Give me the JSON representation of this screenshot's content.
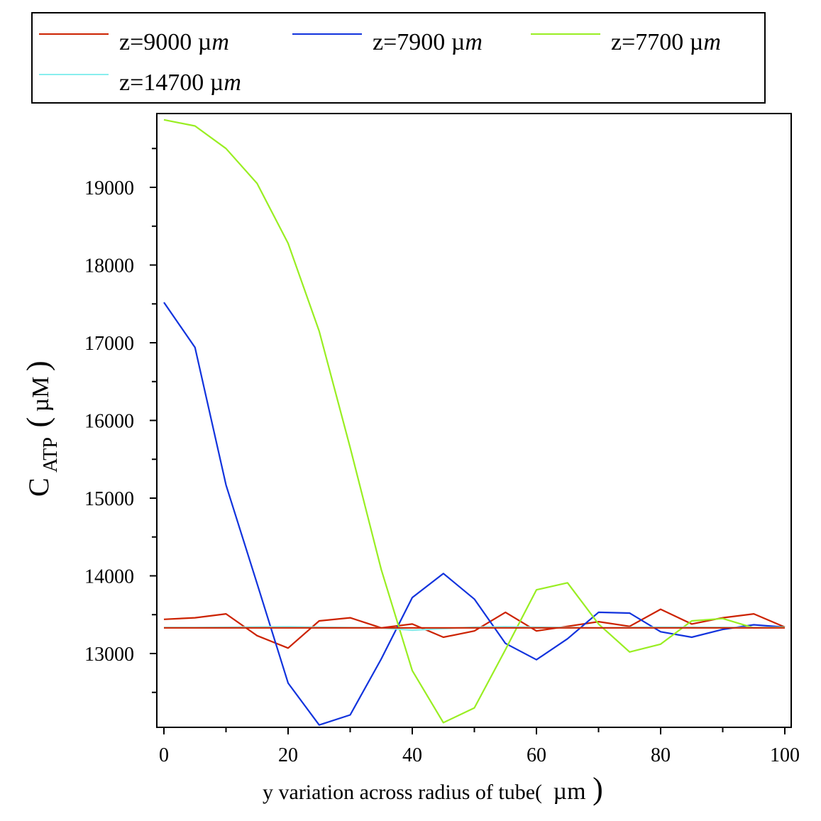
{
  "chart_data": {
    "type": "line",
    "title": "",
    "xlabel_text": "y variation across radius of tube(",
    "xlabel_unit": "µm",
    "xlabel_close": ")",
    "ylabel_main": "C",
    "ylabel_sub": "ATP",
    "ylabel_open": "(",
    "ylabel_unit": "µM",
    "ylabel_close": ")",
    "xlim": [
      0,
      100
    ],
    "ylim": [
      12050,
      19950
    ],
    "xticks": [
      0,
      20,
      40,
      60,
      80,
      100
    ],
    "yticks": [
      13000,
      14000,
      15000,
      16000,
      17000,
      18000,
      19000
    ],
    "x_minor_step": 10,
    "y_minor_step": 500,
    "grid": false,
    "legend_position": "top",
    "series": [
      {
        "name_prefix": "z=9000 ",
        "unit": "µ",
        "unit_italic": "m",
        "color": "#cc2200",
        "x": [
          0,
          5,
          10,
          15,
          20,
          25,
          30,
          35,
          40,
          45,
          50,
          55,
          60,
          65,
          70,
          75,
          80,
          85,
          90,
          95,
          100
        ],
        "values": [
          13440,
          13460,
          13510,
          13230,
          13070,
          13420,
          13460,
          13330,
          13380,
          13210,
          13290,
          13530,
          13290,
          13350,
          13410,
          13350,
          13570,
          13380,
          13460,
          13510,
          13340
        ]
      },
      {
        "name_prefix": "z=7900 ",
        "unit": "µ",
        "unit_italic": "m",
        "color": "#1133dd",
        "x": [
          0,
          5,
          10,
          15,
          20,
          25,
          30,
          35,
          40,
          45,
          50,
          55,
          60,
          65,
          70,
          75,
          80,
          85,
          90,
          95,
          100
        ],
        "values": [
          17520,
          16940,
          15170,
          13900,
          12620,
          12080,
          12210,
          12930,
          13720,
          14030,
          13700,
          13130,
          12920,
          13190,
          13530,
          13520,
          13280,
          13210,
          13310,
          13370,
          13340
        ]
      },
      {
        "name_prefix": "z=7700 ",
        "unit": "µ",
        "unit_italic": "m",
        "color": "#99ee22",
        "x": [
          0,
          5,
          10,
          15,
          20,
          25,
          30,
          35,
          40,
          45,
          50,
          55,
          60,
          65,
          70,
          75,
          80,
          85,
          90,
          95,
          100
        ],
        "values": [
          19870,
          19790,
          19500,
          19050,
          18280,
          17150,
          15650,
          14080,
          12780,
          12110,
          12300,
          13050,
          13820,
          13910,
          13380,
          13020,
          13120,
          13420,
          13450,
          13330,
          13340
        ]
      },
      {
        "name_prefix": "z=14700 ",
        "unit": "µ",
        "unit_italic": "m",
        "color": "#88eeee",
        "x": [
          0,
          5,
          10,
          15,
          20,
          25,
          30,
          35,
          40,
          45,
          50,
          55,
          60,
          65,
          70,
          75,
          80,
          85,
          90,
          95,
          100
        ],
        "values": [
          13335,
          13335,
          13338,
          13342,
          13345,
          13340,
          13335,
          13330,
          13300,
          13320,
          13340,
          13345,
          13340,
          13335,
          13330,
          13335,
          13340,
          13338,
          13336,
          13335,
          13335
        ]
      },
      {
        "name_prefix": "",
        "unit": "",
        "unit_italic": "",
        "color": "#cc2200",
        "x": [
          0,
          100
        ],
        "values": [
          13330,
          13330
        ]
      }
    ]
  }
}
